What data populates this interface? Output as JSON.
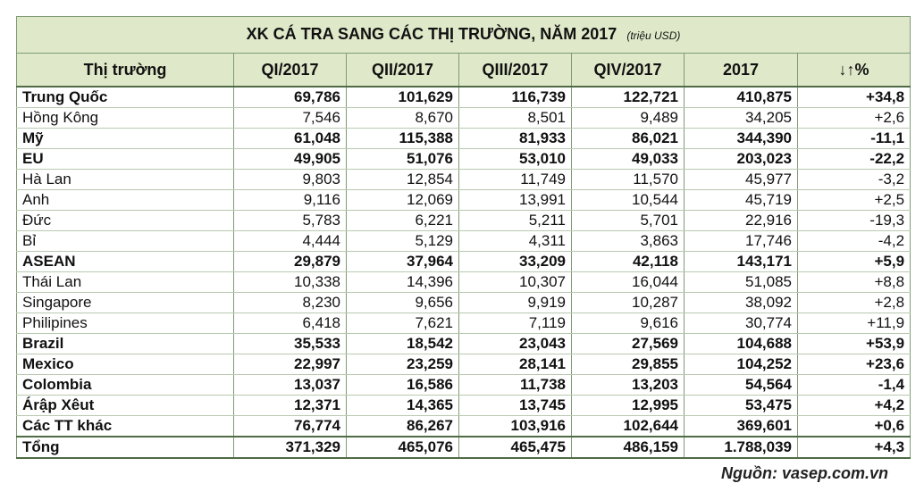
{
  "table": {
    "title": "XK CÁ TRA SANG CÁC THỊ TRƯỜNG, NĂM 2017",
    "unit": "(triệu USD)",
    "columns": [
      "Thị trường",
      "QI/2017",
      "QII/2017",
      "QIII/2017",
      "QIV/2017",
      "2017",
      "↓↑%"
    ],
    "rows": [
      {
        "market": "Trung Quốc",
        "q1": "69,786",
        "q2": "101,629",
        "q3": "116,739",
        "q4": "122,721",
        "year": "410,875",
        "change": "+34,8",
        "bold": true
      },
      {
        "market": "Hồng Kông",
        "q1": "7,546",
        "q2": "8,670",
        "q3": "8,501",
        "q4": "9,489",
        "year": "34,205",
        "change": "+2,6",
        "bold": false
      },
      {
        "market": "Mỹ",
        "q1": "61,048",
        "q2": "115,388",
        "q3": "81,933",
        "q4": "86,021",
        "year": "344,390",
        "change": "-11,1",
        "bold": true
      },
      {
        "market": "EU",
        "q1": "49,905",
        "q2": "51,076",
        "q3": "53,010",
        "q4": "49,033",
        "year": "203,023",
        "change": "-22,2",
        "bold": true
      },
      {
        "market": "Hà Lan",
        "q1": "9,803",
        "q2": "12,854",
        "q3": "11,749",
        "q4": "11,570",
        "year": "45,977",
        "change": "-3,2",
        "bold": false
      },
      {
        "market": "Anh",
        "q1": "9,116",
        "q2": "12,069",
        "q3": "13,991",
        "q4": "10,544",
        "year": "45,719",
        "change": "+2,5",
        "bold": false
      },
      {
        "market": "Đức",
        "q1": "5,783",
        "q2": "6,221",
        "q3": "5,211",
        "q4": "5,701",
        "year": "22,916",
        "change": "-19,3",
        "bold": false
      },
      {
        "market": "Bỉ",
        "q1": "4,444",
        "q2": "5,129",
        "q3": "4,311",
        "q4": "3,863",
        "year": "17,746",
        "change": "-4,2",
        "bold": false
      },
      {
        "market": "ASEAN",
        "q1": "29,879",
        "q2": "37,964",
        "q3": "33,209",
        "q4": "42,118",
        "year": "143,171",
        "change": "+5,9",
        "bold": true
      },
      {
        "market": "Thái Lan",
        "q1": "10,338",
        "q2": "14,396",
        "q3": "10,307",
        "q4": "16,044",
        "year": "51,085",
        "change": "+8,8",
        "bold": false
      },
      {
        "market": "Singapore",
        "q1": "8,230",
        "q2": "9,656",
        "q3": "9,919",
        "q4": "10,287",
        "year": "38,092",
        "change": "+2,8",
        "bold": false
      },
      {
        "market": "Philipines",
        "q1": "6,418",
        "q2": "7,621",
        "q3": "7,119",
        "q4": "9,616",
        "year": "30,774",
        "change": "+11,9",
        "bold": false
      },
      {
        "market": "Brazil",
        "q1": "35,533",
        "q2": "18,542",
        "q3": "23,043",
        "q4": "27,569",
        "year": "104,688",
        "change": "+53,9",
        "bold": true
      },
      {
        "market": "Mexico",
        "q1": "22,997",
        "q2": "23,259",
        "q3": "28,141",
        "q4": "29,855",
        "year": "104,252",
        "change": "+23,6",
        "bold": true
      },
      {
        "market": "Colombia",
        "q1": "13,037",
        "q2": "16,586",
        "q3": "11,738",
        "q4": "13,203",
        "year": "54,564",
        "change": "-1,4",
        "bold": true
      },
      {
        "market": "Árập Xêut",
        "q1": "12,371",
        "q2": "14,365",
        "q3": "13,745",
        "q4": "12,995",
        "year": "53,475",
        "change": "+4,2",
        "bold": true
      },
      {
        "market": "Các TT khác",
        "q1": "76,774",
        "q2": "86,267",
        "q3": "103,916",
        "q4": "102,644",
        "year": "369,601",
        "change": "+0,6",
        "bold": true
      }
    ],
    "total": {
      "market": "Tổng",
      "q1": "371,329",
      "q2": "465,076",
      "q3": "465,475",
      "q4": "486,159",
      "year": "1.788,039",
      "change": "+4,3"
    }
  },
  "source": "Nguồn: vasep.com.vn"
}
